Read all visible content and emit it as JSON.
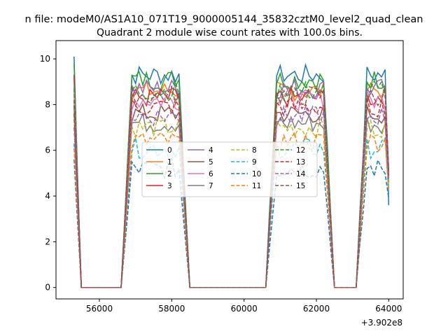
{
  "chart_data": {
    "type": "line",
    "suptitle": "n file: modeM0/AS1A10_071T19_9000005144_35832cztM0_level2_quad_clean",
    "title": "Quadrant 2 module wise count rates with 100.0s bins.",
    "xlabel": "",
    "ylabel": "",
    "x_offset_label": "+3.902e8",
    "xlim": [
      54800,
      64400
    ],
    "ylim": [
      -0.5,
      10.8
    ],
    "xticks": [
      56000,
      58000,
      60000,
      62000,
      64000
    ],
    "yticks": [
      0,
      2,
      4,
      6,
      8,
      10
    ],
    "grid": false,
    "legend_position": "center",
    "bin_seconds": 100,
    "segments": [
      {
        "start": 55300,
        "end": 55500
      },
      {
        "start": 56600,
        "end": 58500
      },
      {
        "start": 60600,
        "end": 62500
      },
      {
        "start": 63100,
        "end": 64000
      }
    ],
    "series": [
      {
        "name": "0",
        "color": "#1f77b4",
        "dash": "solid",
        "level": 9.3,
        "first": 10.1,
        "last": 3.6
      },
      {
        "name": "1",
        "color": "#ff7f0e",
        "dash": "solid",
        "level": 8.6,
        "first": 9.2,
        "last": 4.6
      },
      {
        "name": "2",
        "color": "#2ca02c",
        "dash": "solid",
        "level": 9.1,
        "first": 9.8,
        "last": 5.0
      },
      {
        "name": "3",
        "color": "#d62728",
        "dash": "solid",
        "level": 8.3,
        "first": 9.3,
        "last": 4.9
      },
      {
        "name": "4",
        "color": "#9467bd",
        "dash": "solid",
        "level": 8.7,
        "first": 8.8,
        "last": 5.2
      },
      {
        "name": "5",
        "color": "#8c564b",
        "dash": "solid",
        "level": 7.6,
        "first": 8.0,
        "last": 4.8
      },
      {
        "name": "6",
        "color": "#e377c2",
        "dash": "solid",
        "level": 8.2,
        "first": 8.5,
        "last": 4.9
      },
      {
        "name": "7",
        "color": "#7f7f7f",
        "dash": "solid",
        "level": 7.2,
        "first": 7.9,
        "last": 4.6
      },
      {
        "name": "8",
        "color": "#bcbd22",
        "dash": "dashed",
        "level": 7.0,
        "first": 7.4,
        "last": 4.4
      },
      {
        "name": "9",
        "color": "#17becf",
        "dash": "dashed",
        "level": 6.1,
        "first": 6.3,
        "last": 4.1
      },
      {
        "name": "10",
        "color": "#1f77b4",
        "dash": "dashed",
        "level": 5.2,
        "first": 5.6,
        "last": 3.9
      },
      {
        "name": "11",
        "color": "#ff7f0e",
        "dash": "dashed",
        "level": 6.4,
        "first": 6.1,
        "last": 4.3
      },
      {
        "name": "12",
        "color": "#2ca02c",
        "dash": "dashed",
        "level": 8.6,
        "first": 8.7,
        "last": 5.1
      },
      {
        "name": "13",
        "color": "#d62728",
        "dash": "dashed",
        "level": 7.9,
        "first": 7.6,
        "last": 4.9
      },
      {
        "name": "14",
        "color": "#9467bd",
        "dash": "dashed",
        "level": 7.5,
        "first": 7.0,
        "last": 4.7
      },
      {
        "name": "15",
        "color": "#8c564b",
        "dash": "dashed",
        "level": 8.4,
        "first": 8.2,
        "last": 5.0
      }
    ]
  }
}
